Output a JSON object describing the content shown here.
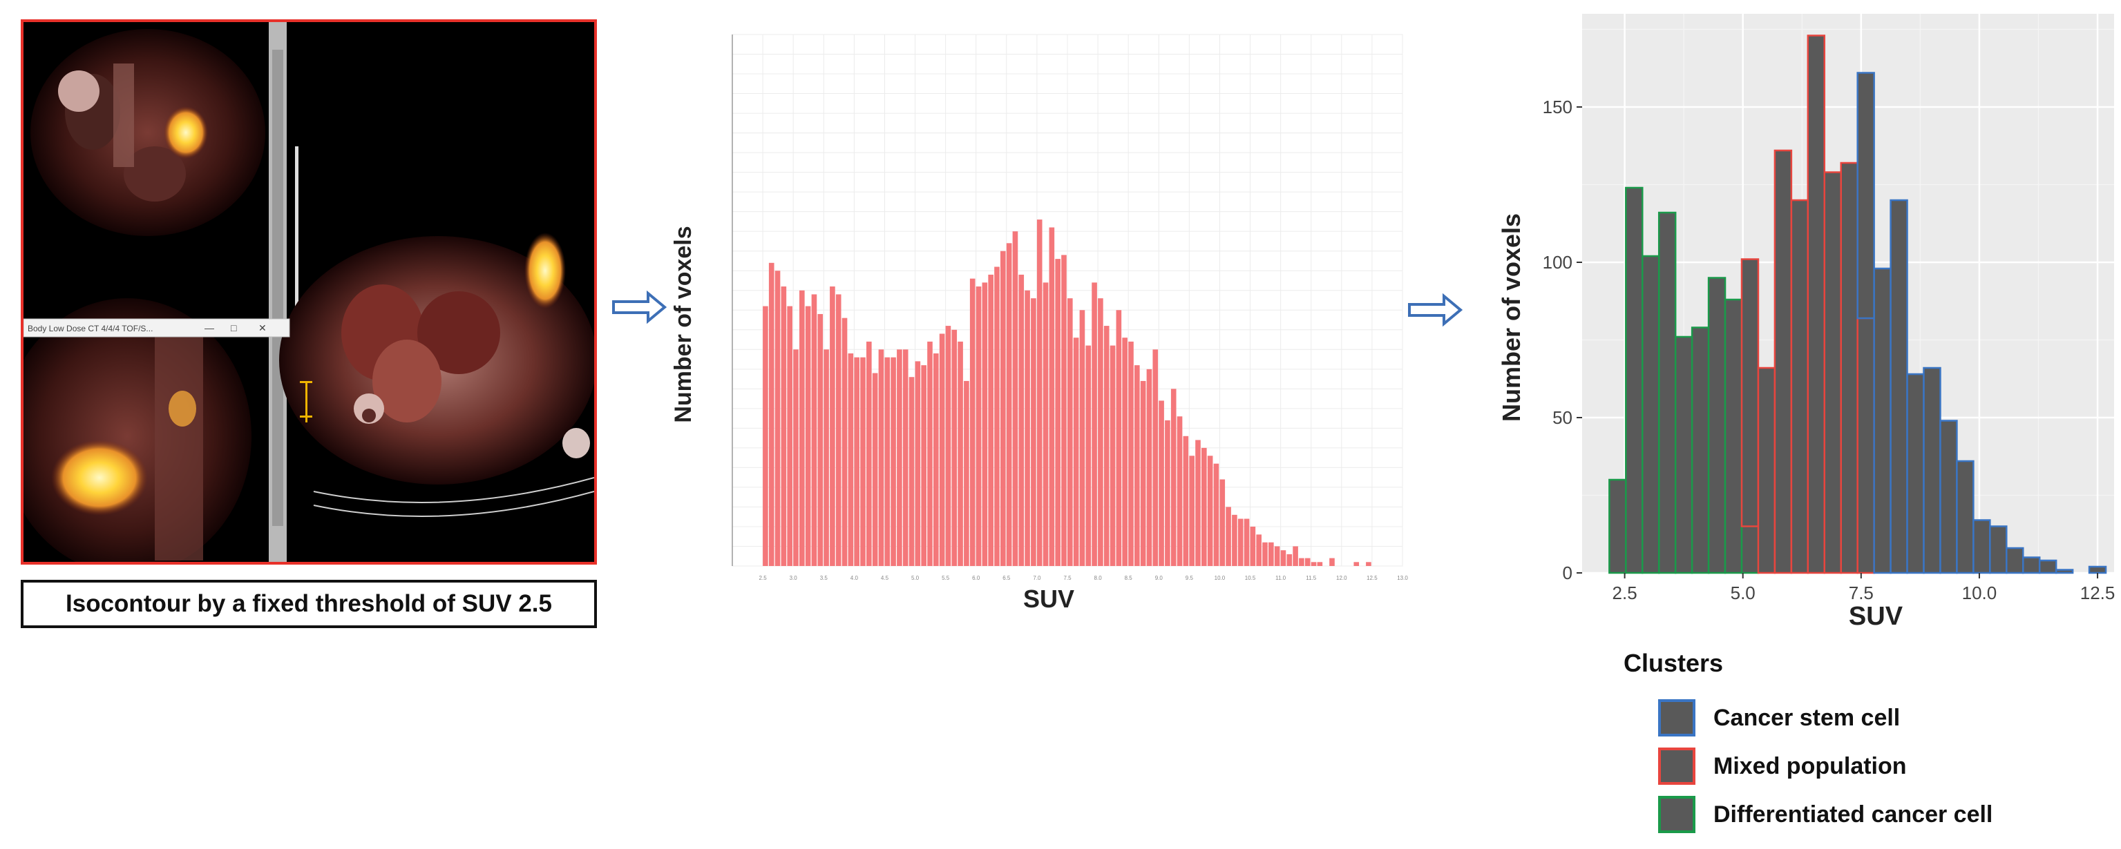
{
  "panel_a": {
    "caption": "Isocontour by a fixed threshold of SUV 2.5",
    "frame_color": "#e8312a",
    "window_title": "Body Low Dose CT 4/4/4 TOF/S...",
    "window_controls": [
      "—",
      "□",
      "✕"
    ]
  },
  "arrow_color": "#3d6fb6",
  "chart_data": [
    {
      "type": "bar",
      "xlabel": "SUV",
      "ylabel": "Number of voxels",
      "x_start": 2.5,
      "bin_width": 0.1,
      "xlim": [
        2.0,
        13.0
      ],
      "ylim": [
        0,
        135
      ],
      "bar_color": "#f4777a",
      "grid": true,
      "values": [
        66,
        77,
        75,
        71,
        66,
        55,
        70,
        66,
        69,
        64,
        55,
        71,
        69,
        63,
        54,
        53,
        53,
        57,
        49,
        55,
        53,
        53,
        55,
        55,
        48,
        52,
        51,
        57,
        54,
        59,
        61,
        60,
        57,
        47,
        73,
        71,
        72,
        74,
        76,
        80,
        82,
        85,
        74,
        70,
        68,
        88,
        72,
        86,
        78,
        79,
        68,
        58,
        65,
        56,
        72,
        68,
        61,
        56,
        65,
        58,
        57,
        51,
        47,
        50,
        55,
        42,
        37,
        45,
        38,
        33,
        28,
        32,
        30,
        28,
        26,
        22,
        15,
        13,
        12,
        12,
        10,
        8,
        6,
        6,
        5,
        4,
        3,
        5,
        2,
        2,
        1,
        1,
        0,
        2,
        0,
        0,
        0,
        1,
        0,
        1
      ]
    },
    {
      "type": "bar",
      "xlabel": "SUV",
      "ylabel": "Number of voxels",
      "xlim": [
        1.6,
        12.85
      ],
      "ylim": [
        0,
        180
      ],
      "x_ticks": [
        "2.5",
        "5.0",
        "7.5",
        "10.0",
        "12.5"
      ],
      "y_ticks": [
        "0",
        "50",
        "100",
        "150"
      ],
      "bin_centers": [
        2.35,
        2.7,
        3.05,
        3.4,
        3.75,
        4.1,
        4.45,
        4.8,
        5.15,
        5.5,
        5.85,
        6.2,
        6.55,
        6.9,
        7.25,
        7.6,
        7.95,
        8.3,
        8.65,
        9.0,
        9.35,
        9.7,
        10.05,
        10.4,
        10.75,
        11.1,
        11.45,
        11.8,
        12.15,
        12.5
      ],
      "series": [
        {
          "name": "Cancer stem cell",
          "border_color": "#3a75c4",
          "values": [
            0,
            0,
            0,
            0,
            0,
            0,
            0,
            0,
            0,
            0,
            0,
            0,
            0,
            0,
            0,
            79,
            98,
            120,
            64,
            66,
            49,
            36,
            17,
            15,
            8,
            5,
            4,
            1,
            0,
            2
          ]
        },
        {
          "name": "Mixed population",
          "border_color": "#e8453e",
          "values": [
            0,
            0,
            0,
            0,
            0,
            0,
            0,
            0,
            86,
            66,
            136,
            120,
            173,
            129,
            132,
            82,
            0,
            0,
            0,
            0,
            0,
            0,
            0,
            0,
            0,
            0,
            0,
            0,
            0,
            0
          ]
        },
        {
          "name": "Differentiated cancer cell",
          "border_color": "#1a9a4a",
          "values": [
            30,
            124,
            102,
            116,
            76,
            79,
            95,
            88,
            15,
            0,
            0,
            0,
            0,
            0,
            0,
            0,
            0,
            0,
            0,
            0,
            0,
            0,
            0,
            0,
            0,
            0,
            0,
            0,
            0,
            0
          ]
        }
      ],
      "fill_color": "#595959",
      "panel_background": "#ebebeb",
      "legend": {
        "title": "Clusters",
        "position": "bottom-right"
      }
    }
  ]
}
